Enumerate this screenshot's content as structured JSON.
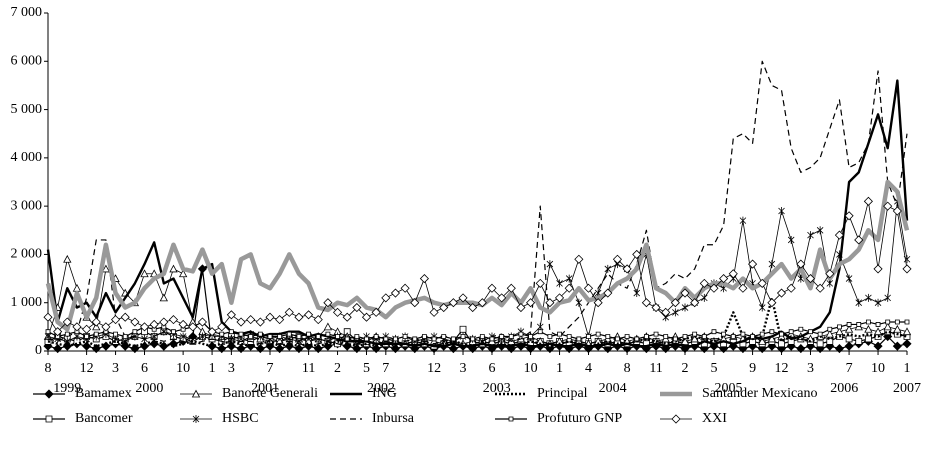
{
  "chart_data": {
    "type": "line",
    "x": [
      "1999-08",
      "1999-09",
      "1999-10",
      "1999-11",
      "1999-12",
      "2000-01",
      "2000-02",
      "2000-03",
      "2000-04",
      "2000-05",
      "2000-06",
      "2000-07",
      "2000-08",
      "2000-09",
      "2000-10",
      "2000-11",
      "2000-12",
      "2001-01",
      "2001-02",
      "2001-03",
      "2001-04",
      "2001-05",
      "2001-06",
      "2001-07",
      "2001-08",
      "2001-09",
      "2001-10",
      "2001-11",
      "2001-12",
      "2002-01",
      "2002-02",
      "2002-03",
      "2002-04",
      "2002-05",
      "2002-06",
      "2002-07",
      "2002-08",
      "2002-09",
      "2002-10",
      "2002-11",
      "2002-12",
      "2003-01",
      "2003-02",
      "2003-03",
      "2003-04",
      "2003-05",
      "2003-06",
      "2003-07",
      "2003-08",
      "2003-09",
      "2003-10",
      "2003-11",
      "2003-12",
      "2004-01",
      "2004-02",
      "2004-03",
      "2004-04",
      "2004-05",
      "2004-06",
      "2004-07",
      "2004-08",
      "2004-09",
      "2004-10",
      "2004-11",
      "2004-12",
      "2005-01",
      "2005-02",
      "2005-03",
      "2005-04",
      "2005-05",
      "2005-06",
      "2005-07",
      "2005-08",
      "2005-09",
      "2005-10",
      "2005-11",
      "2005-12",
      "2006-01",
      "2006-02",
      "2006-03",
      "2006-04",
      "2006-05",
      "2006-06",
      "2006-07",
      "2006-08",
      "2006-09",
      "2006-10",
      "2006-11",
      "2006-12",
      "2007-01"
    ],
    "xticks": [
      {
        "value": "1999-08",
        "label": "8"
      },
      {
        "value": "1999-12",
        "label": "12"
      },
      {
        "value": "2000-03",
        "label": "3"
      },
      {
        "value": "2000-06",
        "label": "6"
      },
      {
        "value": "2000-10",
        "label": "10"
      },
      {
        "value": "2001-01",
        "label": "1"
      },
      {
        "value": "2001-03",
        "label": "3"
      },
      {
        "value": "2001-07",
        "label": "7"
      },
      {
        "value": "2001-11",
        "label": "11"
      },
      {
        "value": "2002-02",
        "label": "2"
      },
      {
        "value": "2002-05",
        "label": "5"
      },
      {
        "value": "2002-07",
        "label": "7"
      },
      {
        "value": "2002-12",
        "label": "12"
      },
      {
        "value": "2003-03",
        "label": "3"
      },
      {
        "value": "2003-06",
        "label": "6"
      },
      {
        "value": "2003-10",
        "label": "10"
      },
      {
        "value": "2004-01",
        "label": "1"
      },
      {
        "value": "2004-04",
        "label": "4"
      },
      {
        "value": "2004-08",
        "label": "8"
      },
      {
        "value": "2004-11",
        "label": "11"
      },
      {
        "value": "2005-02",
        "label": "2"
      },
      {
        "value": "2005-05",
        "label": "5"
      },
      {
        "value": "2005-09",
        "label": "9"
      },
      {
        "value": "2005-12",
        "label": "12"
      },
      {
        "value": "2006-03",
        "label": "3"
      },
      {
        "value": "2006-07",
        "label": "7"
      },
      {
        "value": "2006-10",
        "label": "10"
      },
      {
        "value": "2007-01",
        "label": "1"
      }
    ],
    "x_years": [
      "1999",
      "2000",
      "2001",
      "2002",
      "2003",
      "2004",
      "2005",
      "2006",
      "2007"
    ],
    "ylim": [
      0,
      7000
    ],
    "yticks": [
      0,
      {
        "value": 1000,
        "label": "1 000"
      },
      {
        "value": 2000,
        "label": "2 000"
      },
      {
        "value": 3000,
        "label": "3 000"
      },
      {
        "value": 4000,
        "label": "4 000"
      },
      {
        "value": 5000,
        "label": "5 000"
      },
      {
        "value": 6000,
        "label": "6 000"
      },
      {
        "value": 7000,
        "label": "7 000"
      }
    ],
    "series": [
      {
        "name": "Bamamex",
        "color": "#000000",
        "dash": "solid",
        "weight": "normal",
        "marker": "diamond-filled",
        "values": [
          100,
          50,
          100,
          150,
          100,
          50,
          100,
          150,
          100,
          50,
          100,
          150,
          100,
          150,
          200,
          300,
          1700,
          100,
          50,
          100,
          50,
          100,
          50,
          100,
          50,
          100,
          50,
          100,
          50,
          100,
          150,
          100,
          50,
          100,
          50,
          100,
          50,
          100,
          50,
          100,
          50,
          100,
          50,
          100,
          50,
          100,
          50,
          100,
          50,
          100,
          50,
          100,
          50,
          100,
          50,
          100,
          50,
          100,
          50,
          100,
          50,
          100,
          50,
          100,
          50,
          100,
          50,
          100,
          50,
          100,
          50,
          100,
          50,
          100,
          50,
          100,
          50,
          100,
          50,
          100,
          50,
          100,
          50,
          100,
          150,
          200,
          100,
          300,
          100,
          150
        ]
      },
      {
        "name": "Bancomer",
        "color": "#000000",
        "dash": "solid",
        "weight": "normal",
        "marker": "square-open",
        "values": [
          200,
          300,
          250,
          200,
          300,
          250,
          300,
          200,
          250,
          300,
          400,
          300,
          400,
          300,
          250,
          200,
          300,
          250,
          200,
          300,
          250,
          200,
          300,
          250,
          200,
          250,
          300,
          200,
          250,
          200,
          150,
          400,
          200,
          150,
          200,
          150,
          200,
          150,
          200,
          150,
          100,
          150,
          200,
          450,
          150,
          200,
          150,
          200,
          150,
          200,
          150,
          200,
          150,
          200,
          150,
          200,
          150,
          200,
          150,
          200,
          150,
          200,
          150,
          200,
          150,
          200,
          150,
          200,
          150,
          200,
          150,
          200,
          150,
          200,
          150,
          200,
          150,
          200,
          250,
          200,
          150,
          200,
          300,
          250,
          200,
          250,
          300,
          400,
          350,
          300
        ]
      },
      {
        "name": "Banorte Generali",
        "color": "#000000",
        "dash": "solid",
        "weight": "thin",
        "marker": "triangle-open",
        "values": [
          300,
          900,
          1900,
          1300,
          700,
          500,
          1700,
          1500,
          1200,
          1000,
          1600,
          1600,
          1100,
          1700,
          1600,
          600,
          400,
          300,
          300,
          250,
          200,
          300,
          250,
          200,
          200,
          300,
          250,
          200,
          300,
          500,
          400,
          300,
          250,
          200,
          300,
          250,
          200,
          150,
          200,
          250,
          200,
          150,
          200,
          150,
          200,
          150,
          200,
          250,
          200,
          250,
          300,
          200,
          150,
          200,
          250,
          200,
          150,
          200,
          250,
          300,
          200,
          250,
          300,
          200,
          250,
          300,
          200,
          250,
          300,
          200,
          250,
          300,
          250,
          300,
          200,
          250,
          300,
          350,
          300,
          250,
          300,
          350,
          400,
          450,
          500,
          450,
          400,
          500,
          450,
          400
        ]
      },
      {
        "name": "HSBC",
        "color": "#000000",
        "dash": "solid",
        "weight": "thin",
        "marker": "star",
        "values": [
          300,
          250,
          200,
          300,
          250,
          300,
          350,
          250,
          200,
          300,
          250,
          300,
          400,
          350,
          300,
          250,
          300,
          350,
          300,
          250,
          300,
          350,
          300,
          250,
          300,
          250,
          200,
          300,
          250,
          200,
          300,
          250,
          200,
          300,
          250,
          300,
          250,
          300,
          200,
          250,
          300,
          250,
          200,
          300,
          250,
          200,
          300,
          250,
          300,
          400,
          300,
          500,
          1800,
          1400,
          1500,
          1000,
          300,
          1200,
          1700,
          1800,
          1700,
          1200,
          2000,
          900,
          700,
          800,
          900,
          1000,
          1100,
          1400,
          1300,
          1500,
          2700,
          1400,
          900,
          1800,
          2900,
          2300,
          1500,
          2400,
          2500,
          1400,
          2000,
          1500,
          1000,
          1100,
          1000,
          1100,
          3100,
          1900
        ]
      },
      {
        "name": "ING",
        "color": "#000000",
        "dash": "solid",
        "weight": "bold",
        "marker": "none",
        "values": [
          2100,
          600,
          1300,
          900,
          1000,
          700,
          1200,
          800,
          1100,
          1400,
          1800,
          2250,
          1400,
          1500,
          1100,
          700,
          1700,
          1800,
          600,
          400,
          350,
          400,
          300,
          350,
          350,
          400,
          400,
          300,
          350,
          300,
          250,
          200,
          200,
          200,
          150,
          150,
          150,
          150,
          100,
          150,
          100,
          100,
          150,
          100,
          100,
          150,
          100,
          100,
          100,
          150,
          100,
          100,
          150,
          100,
          100,
          150,
          100,
          100,
          150,
          100,
          150,
          100,
          100,
          150,
          100,
          150,
          100,
          100,
          200,
          150,
          200,
          150,
          200,
          300,
          250,
          300,
          400,
          250,
          300,
          400,
          500,
          800,
          1700,
          3500,
          3700,
          4300,
          4900,
          4200,
          5600,
          2700
        ]
      },
      {
        "name": "Inbursa",
        "color": "#000000",
        "dash": "dashed",
        "weight": "normal",
        "marker": "none",
        "values": [
          250,
          200,
          300,
          400,
          1100,
          2300,
          2300,
          700,
          300,
          300,
          250,
          250,
          200,
          250,
          200,
          150,
          200,
          250,
          200,
          150,
          200,
          200,
          150,
          150,
          150,
          200,
          150,
          100,
          150,
          200,
          150,
          100,
          150,
          200,
          150,
          200,
          150,
          200,
          250,
          200,
          150,
          200,
          250,
          300,
          250,
          200,
          300,
          350,
          200,
          250,
          400,
          3000,
          400,
          300,
          500,
          700,
          1000,
          1300,
          1600,
          1400,
          1300,
          1800,
          2500,
          1300,
          1400,
          1600,
          1500,
          1700,
          2200,
          2200,
          2600,
          4400,
          4500,
          4300,
          6000,
          5500,
          5400,
          4200,
          3700,
          3800,
          4000,
          4600,
          5200,
          3800,
          3900,
          4300,
          5800,
          3500,
          3000,
          4500
        ]
      },
      {
        "name": "Principal",
        "color": "#000000",
        "dash": "dotted",
        "weight": "bold",
        "marker": "none",
        "values": [
          200,
          150,
          100,
          150,
          200,
          100,
          150,
          200,
          150,
          100,
          150,
          200,
          150,
          100,
          150,
          200,
          150,
          100,
          150,
          200,
          150,
          100,
          150,
          200,
          100,
          150,
          100,
          150,
          100,
          150,
          200,
          150,
          100,
          150,
          100,
          150,
          100,
          150,
          100,
          150,
          100,
          150,
          200,
          150,
          100,
          150,
          100,
          150,
          100,
          150,
          200,
          150,
          100,
          150,
          200,
          150,
          100,
          150,
          200,
          150,
          150,
          200,
          250,
          200,
          150,
          200,
          250,
          300,
          250,
          200,
          300,
          800,
          300,
          250,
          300,
          1100,
          200,
          300,
          250,
          200,
          300,
          250,
          300,
          350,
          300,
          350,
          300,
          400,
          350,
          300
        ]
      },
      {
        "name": "Profuturo GNP",
        "color": "#000000",
        "dash": "solid",
        "weight": "normal",
        "marker": "square-small",
        "values": [
          400,
          300,
          350,
          400,
          300,
          350,
          400,
          350,
          300,
          400,
          500,
          450,
          500,
          400,
          450,
          500,
          600,
          400,
          350,
          400,
          350,
          300,
          350,
          300,
          300,
          350,
          300,
          350,
          300,
          350,
          300,
          250,
          300,
          250,
          300,
          250,
          250,
          300,
          250,
          300,
          250,
          300,
          250,
          300,
          250,
          300,
          250,
          300,
          300,
          350,
          300,
          400,
          300,
          350,
          300,
          250,
          300,
          350,
          300,
          250,
          300,
          250,
          300,
          350,
          300,
          250,
          300,
          350,
          300,
          400,
          350,
          300,
          350,
          300,
          350,
          400,
          350,
          400,
          450,
          400,
          350,
          450,
          500,
          550,
          550,
          600,
          550,
          600,
          600,
          600
        ]
      },
      {
        "name": "Santander Mexicano",
        "color": "#999999",
        "dash": "solid",
        "weight": "heavy",
        "marker": "none",
        "values": [
          1400,
          600,
          450,
          1200,
          700,
          1100,
          2200,
          1200,
          900,
          1000,
          1300,
          1500,
          1600,
          2200,
          1700,
          1650,
          2100,
          1600,
          1800,
          1000,
          1900,
          2000,
          1400,
          1300,
          1600,
          2000,
          1600,
          1400,
          900,
          850,
          1000,
          950,
          1100,
          900,
          850,
          700,
          900,
          1000,
          1050,
          1100,
          1000,
          950,
          1000,
          1000,
          1000,
          950,
          1100,
          950,
          1200,
          1000,
          1300,
          900,
          800,
          1000,
          1050,
          1300,
          1050,
          1100,
          1200,
          1400,
          1500,
          1700,
          2200,
          1300,
          1200,
          1000,
          1300,
          1100,
          1300,
          1400,
          1400,
          1300,
          1500,
          1300,
          1400,
          1600,
          1800,
          1500,
          1700,
          1300,
          2100,
          1500,
          1800,
          1900,
          2100,
          2500,
          2300,
          3500,
          3300,
          2500
        ]
      },
      {
        "name": "XXI",
        "color": "#000000",
        "dash": "solid",
        "weight": "thin",
        "marker": "diamond-open",
        "values": [
          700,
          400,
          600,
          500,
          450,
          600,
          500,
          650,
          700,
          600,
          500,
          550,
          600,
          650,
          550,
          500,
          600,
          400,
          500,
          750,
          600,
          650,
          600,
          700,
          650,
          800,
          700,
          750,
          650,
          1000,
          800,
          700,
          900,
          700,
          800,
          1100,
          1200,
          1300,
          1000,
          1500,
          800,
          900,
          1000,
          1100,
          900,
          1000,
          1300,
          1100,
          1300,
          900,
          1000,
          1400,
          1000,
          1100,
          1300,
          1900,
          1300,
          1000,
          1200,
          1900,
          1700,
          2000,
          1000,
          900,
          800,
          1000,
          1200,
          1000,
          1400,
          1300,
          1500,
          1600,
          1300,
          1800,
          1400,
          1000,
          1200,
          1300,
          1800,
          1500,
          1300,
          1600,
          2400,
          2800,
          2300,
          3100,
          1700,
          3000,
          2900,
          1700
        ]
      }
    ]
  }
}
